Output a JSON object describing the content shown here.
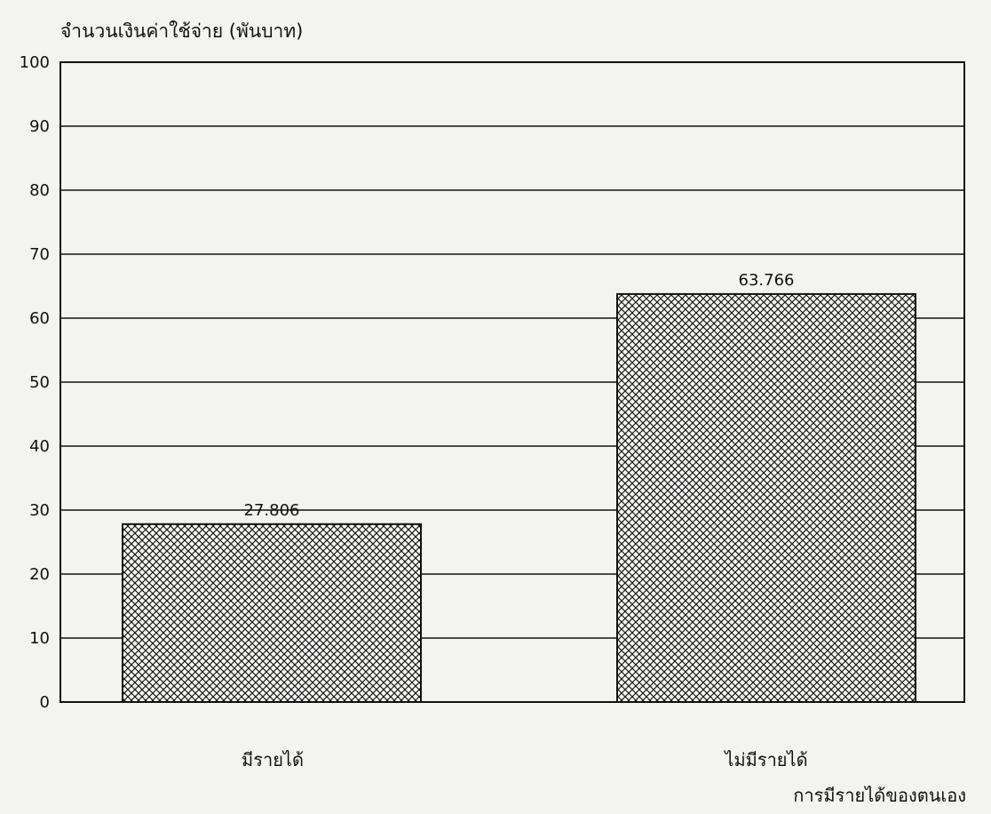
{
  "chart_data": {
    "type": "bar",
    "ylabel": "จำนวนเงินค่าใช้จ่าย (พันบาท)",
    "xlabel": "การมีรายได้ของตนเอง",
    "categories": [
      "มีรายได้",
      "ไม่มีรายได้"
    ],
    "values": [
      27.806,
      63.766
    ],
    "value_labels": [
      "27.806",
      "63.766"
    ],
    "ylim": [
      0,
      100
    ],
    "yticks": [
      0,
      10,
      20,
      30,
      40,
      50,
      60,
      70,
      80,
      90,
      100
    ],
    "grid": true,
    "bar_fill": "crosshatch",
    "colors": {
      "background": "#f3f3f1",
      "ink": "#111111"
    }
  }
}
